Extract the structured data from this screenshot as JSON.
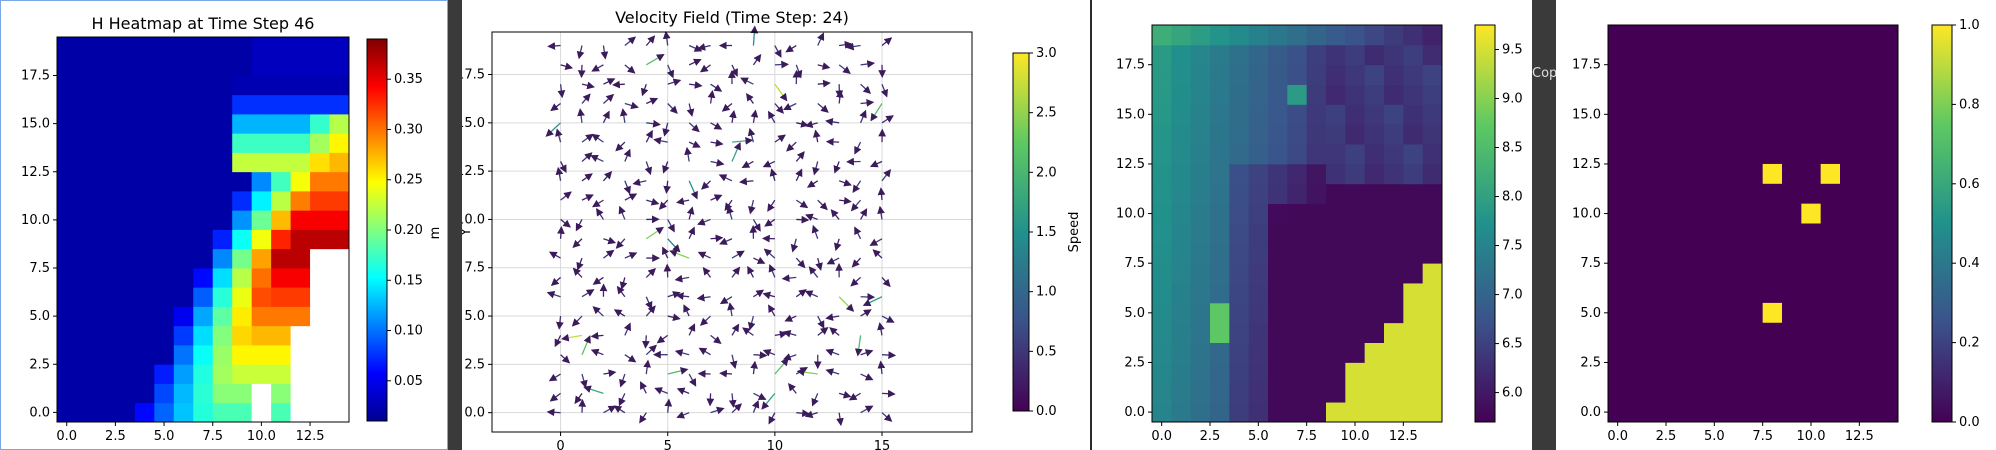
{
  "windows": {
    "heatmap": {
      "title": "H Heatmap at Time Step 46",
      "colorbar_label": "m",
      "colorbar_ticks": [
        "0.05",
        "0.10",
        "0.15",
        "0.20",
        "0.25",
        "0.30",
        "0.35"
      ],
      "x_ticks": [
        "0.0",
        "2.5",
        "5.0",
        "7.5",
        "10.0",
        "12.5"
      ],
      "y_ticks": [
        "0.0",
        "2.5",
        "5.0",
        "7.5",
        "10.0",
        "12.5",
        "15.0",
        "17.5"
      ]
    },
    "velocity": {
      "title": "Velocity Field (Time Step: 24)",
      "ylabel": "Y",
      "colorbar_label": "Speed",
      "colorbar_ticks": [
        "0.0",
        "0.5",
        "1.0",
        "1.5",
        "2.0",
        "2.5",
        "3.0"
      ],
      "x_ticks": [
        "0",
        "5",
        "10",
        "15"
      ],
      "y_ticks": [
        "0.0",
        "2.5",
        "5.0",
        "7.5",
        "10.0",
        "12.5",
        "15.0",
        "17.5"
      ]
    },
    "viridis": {
      "colorbar_ticks": [
        "6.0",
        "6.5",
        "7.0",
        "7.5",
        "8.0",
        "8.5",
        "9.0",
        "9.5"
      ],
      "x_ticks": [
        "0.0",
        "2.5",
        "5.0",
        "7.5",
        "10.0",
        "12.5"
      ],
      "y_ticks": [
        "0.0",
        "2.5",
        "5.0",
        "7.5",
        "10.0",
        "12.5",
        "15.0",
        "17.5"
      ]
    },
    "mask": {
      "colorbar_ticks": [
        "0.0",
        "0.2",
        "0.4",
        "0.6",
        "0.8",
        "1.0"
      ],
      "x_ticks": [
        "0.0",
        "2.5",
        "5.0",
        "7.5",
        "10.0",
        "12.5"
      ],
      "y_ticks": [
        "0.0",
        "2.5",
        "5.0",
        "7.5",
        "10.0",
        "12.5",
        "15.0",
        "17.5"
      ]
    }
  },
  "background_peek": {
    "text": "Cop"
  },
  "colors": {
    "window_border": "#7aa7e8",
    "desktop": "#2b2b2b"
  }
}
